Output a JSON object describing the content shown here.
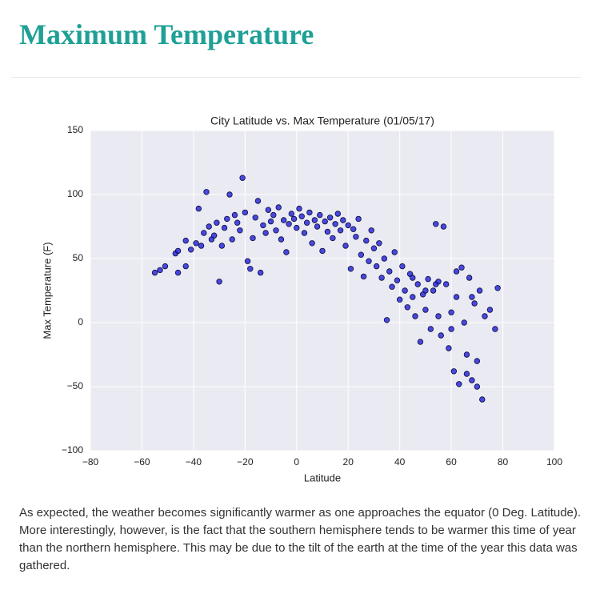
{
  "heading": "Maximum Temperature",
  "paragraph": "As expected, the weather becomes significantly warmer as one approaches the equator (0 Deg. Latitude). More interestingly, however, is the fact that the southern hemisphere tends to be warmer this time of year than the northern hemisphere. This may be due to the tilt of the earth at the time of the year this data was gathered.",
  "chart_data": {
    "type": "scatter",
    "title": "City Latitude vs. Max Temperature (01/05/17)",
    "x_label": "Latitude",
    "y_label": "Max Temperature (F)",
    "color": "#1f1fd8",
    "edge_color": "#0a0a40",
    "grid": true,
    "xlim": [
      -80,
      100
    ],
    "ylim": [
      -100,
      150
    ],
    "xticks": [
      {
        "value": -80,
        "label": "−80"
      },
      {
        "value": -60,
        "label": "−60"
      },
      {
        "value": -40,
        "label": "−40"
      },
      {
        "value": -20,
        "label": "−20"
      },
      0,
      20,
      40,
      60,
      80,
      100
    ],
    "yticks": [
      {
        "value": -100,
        "label": "−100"
      },
      {
        "value": -50,
        "label": "−50"
      },
      0,
      50,
      100,
      150
    ],
    "x": [
      -55,
      -53,
      -51,
      -47,
      -46,
      -46,
      -43,
      -43,
      -41,
      -39,
      -38,
      -37,
      -36,
      -35,
      -34,
      -33,
      -32,
      -31,
      -30,
      -29,
      -28,
      -27,
      -26,
      -25,
      -24,
      -23,
      -22,
      -21,
      -20,
      -19,
      -18,
      -17,
      -16,
      -15,
      -14,
      -13,
      -12,
      -11,
      -10,
      -9,
      -8,
      -7,
      -6,
      -5,
      -4,
      -3,
      -2,
      -1,
      0,
      1,
      2,
      3,
      4,
      5,
      6,
      7,
      8,
      9,
      10,
      11,
      12,
      13,
      14,
      15,
      16,
      17,
      18,
      19,
      20,
      21,
      22,
      23,
      24,
      25,
      26,
      27,
      28,
      29,
      30,
      31,
      32,
      33,
      34,
      35,
      36,
      37,
      38,
      39,
      40,
      41,
      42,
      43,
      44,
      45,
      46,
      47,
      48,
      49,
      50,
      51,
      52,
      53,
      54,
      55,
      56,
      57,
      58,
      59,
      60,
      61,
      62,
      63,
      64,
      65,
      66,
      67,
      68,
      69,
      70,
      71,
      72,
      73,
      75,
      77,
      78,
      54,
      60,
      66,
      70,
      45,
      50,
      55,
      62,
      68
    ],
    "values": [
      39,
      41,
      44,
      54,
      56,
      39,
      44,
      64,
      57,
      62,
      89,
      60,
      70,
      102,
      75,
      65,
      68,
      78,
      32,
      60,
      74,
      81,
      100,
      65,
      84,
      78,
      72,
      113,
      86,
      48,
      42,
      66,
      82,
      95,
      39,
      76,
      70,
      88,
      79,
      84,
      72,
      90,
      65,
      80,
      55,
      77,
      85,
      81,
      74,
      89,
      83,
      70,
      78,
      86,
      62,
      80,
      75,
      84,
      56,
      79,
      71,
      82,
      66,
      77,
      85,
      72,
      80,
      60,
      76,
      42,
      73,
      67,
      81,
      53,
      36,
      64,
      48,
      72,
      58,
      44,
      62,
      35,
      50,
      2,
      40,
      28,
      55,
      33,
      18,
      44,
      25,
      12,
      38,
      20,
      5,
      30,
      -15,
      22,
      10,
      34,
      -5,
      25,
      77,
      5,
      -10,
      75,
      30,
      -20,
      8,
      -38,
      20,
      -48,
      43,
      0,
      -25,
      35,
      -45,
      15,
      -30,
      25,
      -60,
      5,
      10,
      -5,
      27,
      30,
      -5,
      -40,
      -50,
      35,
      25,
      32,
      40,
      20
    ]
  }
}
